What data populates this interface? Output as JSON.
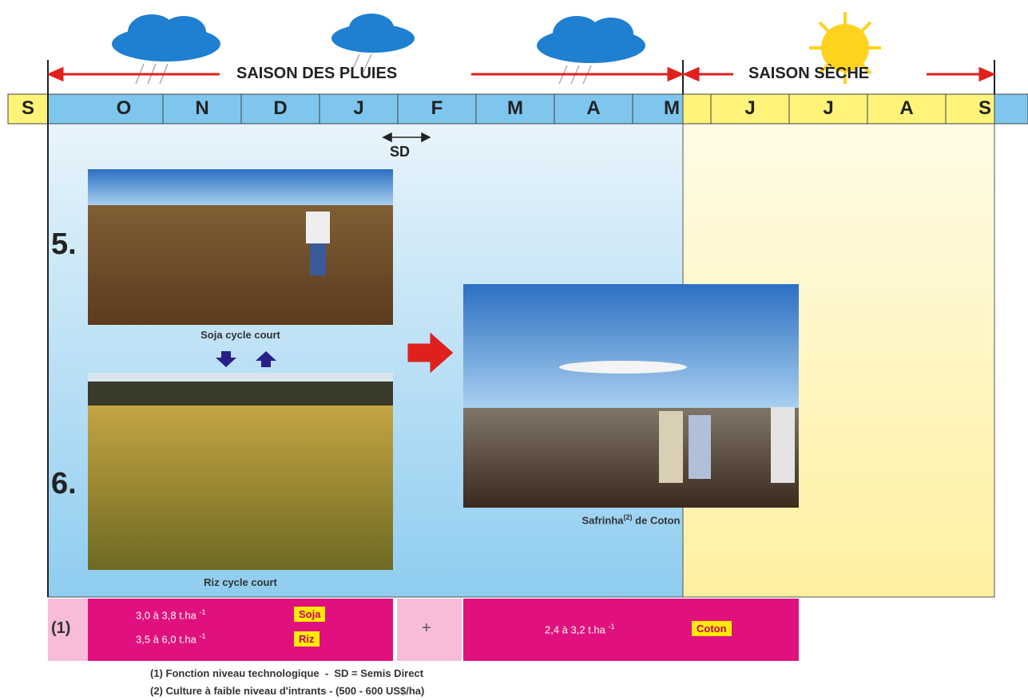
{
  "seasons": {
    "rainy": "SAISON DES PLUIES",
    "dry": "SAISON SÈCHE"
  },
  "months": [
    "S",
    "O",
    "N",
    "D",
    "J",
    "F",
    "M",
    "A",
    "M",
    "J",
    "J",
    "A",
    "S"
  ],
  "sd": "SD",
  "crops": [
    {
      "number": "5.",
      "caption": "Soja cycle court"
    },
    {
      "number": "6.",
      "caption": "Riz cycle court"
    }
  ],
  "safrinha": {
    "caption": "Safrinha",
    "sup": "(2)",
    "suffix": "de Coton"
  },
  "yields": {
    "marker": "(1)",
    "rows": [
      {
        "range": "3,0 à 3,8 t.ha",
        "exp": "-1",
        "crop": "Soja"
      },
      {
        "range": "3,5 à 6,0 t.ha",
        "exp": "-1",
        "crop": "Riz"
      }
    ],
    "plus": "+",
    "coton": {
      "range": "2,4 à 3,2 t.ha",
      "exp": "-1",
      "crop": "Coton"
    }
  },
  "notes": [
    "(1) Fonction niveau technologique  -  SD = Semis Direct",
    "(2) Culture à faible niveau d'intrants - (500 - 600 US$/ha)"
  ]
}
